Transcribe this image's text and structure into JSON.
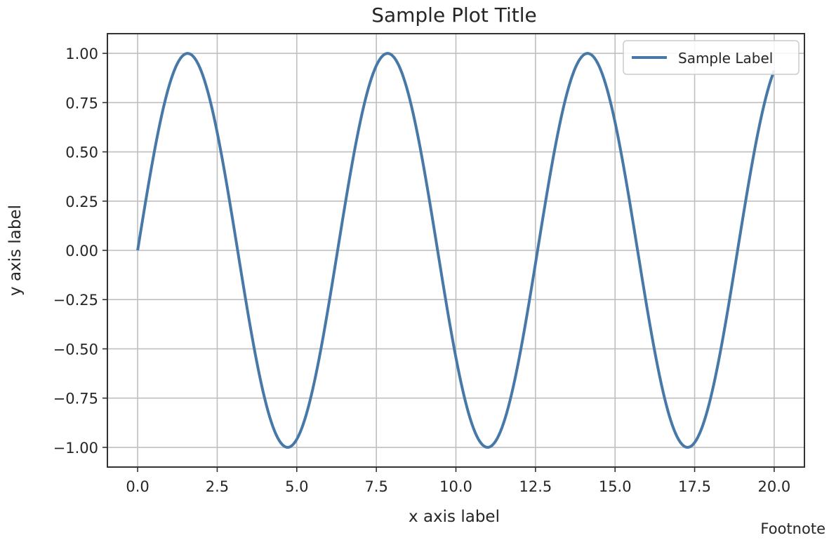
{
  "chart_data": {
    "type": "line",
    "title": "Sample Plot Title",
    "xlabel": "x axis label",
    "ylabel": "y axis label",
    "footnote": "Footnote",
    "xlim": [
      -0.95,
      20.95
    ],
    "ylim": [
      -1.1,
      1.1
    ],
    "xticks": [
      0.0,
      2.5,
      5.0,
      7.5,
      10.0,
      12.5,
      15.0,
      17.5,
      20.0
    ],
    "xtick_labels": [
      "0.0",
      "2.5",
      "5.0",
      "7.5",
      "10.0",
      "12.5",
      "15.0",
      "17.5",
      "20.0"
    ],
    "yticks": [
      1.0,
      0.75,
      0.5,
      0.25,
      0.0,
      -0.25,
      -0.5,
      -0.75,
      -1.0
    ],
    "ytick_labels": [
      "1.00",
      "0.75",
      "0.50",
      "0.25",
      "0.00",
      "−0.25",
      "−0.50",
      "−0.75",
      "−1.00"
    ],
    "grid": true,
    "legend_position": "top-right",
    "series": [
      {
        "name": "Sample Label",
        "color": "#4678a8",
        "function": "sin(x)",
        "x": [
          0.0,
          0.5,
          1.0,
          1.5708,
          2.0,
          2.5,
          3.0,
          3.1416,
          3.5,
          4.0,
          4.5,
          4.7124,
          5.0,
          5.5,
          6.0,
          6.2832,
          6.5,
          7.0,
          7.5,
          7.854,
          8.0,
          8.5,
          9.0,
          9.4248,
          9.5,
          10.0,
          10.5,
          10.9956,
          11.5,
          12.0,
          12.5664,
          13.0,
          13.5,
          14.1372,
          14.5,
          15.0,
          15.708,
          16.0,
          16.5,
          17.2788,
          17.5,
          18.0,
          18.5,
          18.8496,
          19.0,
          19.5,
          20.0
        ],
        "y": [
          0.0,
          0.479,
          0.841,
          1.0,
          0.909,
          0.598,
          0.141,
          0.0,
          -0.351,
          -0.757,
          -0.978,
          -1.0,
          -0.959,
          -0.706,
          -0.279,
          0.0,
          0.215,
          0.657,
          0.938,
          1.0,
          0.989,
          0.798,
          0.412,
          0.0,
          -0.075,
          -0.544,
          -0.88,
          -1.0,
          -0.875,
          -0.537,
          0.0,
          0.42,
          0.803,
          1.0,
          0.935,
          0.65,
          0.0,
          -0.288,
          -0.712,
          -1.0,
          -0.976,
          -0.751,
          -0.342,
          0.0,
          0.15,
          0.603,
          0.913
        ]
      }
    ]
  }
}
